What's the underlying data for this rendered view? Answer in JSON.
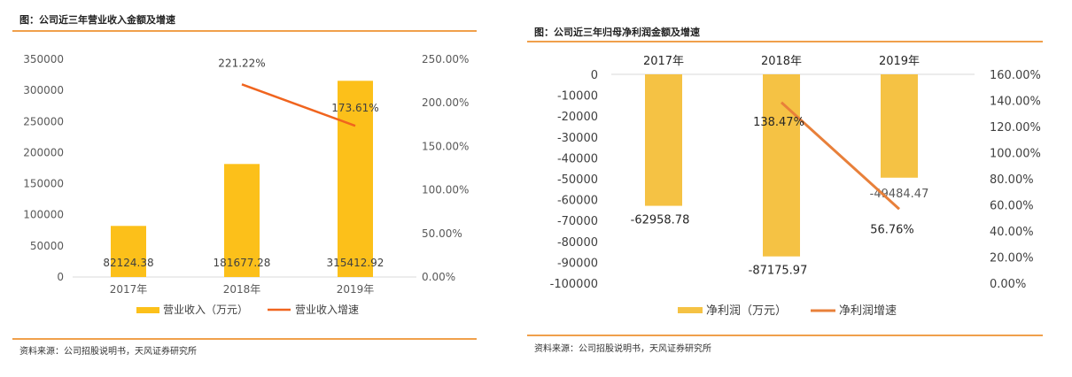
{
  "charts": [
    {
      "figure_title": "图：公司近三年营业收入金额及增速",
      "source_text": "资料来源：公司招股说明书，天风证券研究所",
      "chart_data": {
        "type": "bar",
        "categories": [
          "2017年",
          "2018年",
          "2019年"
        ],
        "series": [
          {
            "name": "营业收入（万元）",
            "type": "bar",
            "axis": "left",
            "color": "#fcc01a",
            "values": [
              82124.38,
              181677.28,
              315412.92
            ],
            "labels": [
              "82124.38",
              "181677.28",
              "315412.92"
            ]
          },
          {
            "name": "营业收入增速",
            "type": "line",
            "axis": "right",
            "color": "#f0641e",
            "values": [
              null,
              221.22,
              173.61
            ],
            "labels": [
              "",
              "221.22%",
              "173.61%"
            ]
          }
        ],
        "left_axis": {
          "min": 0,
          "max": 350000,
          "ticks": [
            "0",
            "50000",
            "100000",
            "150000",
            "200000",
            "250000",
            "300000",
            "350000"
          ]
        },
        "right_axis": {
          "min": 0,
          "max": 250,
          "ticks": [
            "0.00%",
            "50.00%",
            "100.00%",
            "150.00%",
            "200.00%",
            "250.00%"
          ]
        },
        "legend_position": "bottom",
        "grid": false
      }
    },
    {
      "figure_title": "图：公司近三年归母净利润金额及增速",
      "source_text": "资料来源：公司招股说明书，天风证券研究所",
      "chart_data": {
        "type": "bar",
        "categories": [
          "2017年",
          "2018年",
          "2019年"
        ],
        "category_axis_position": "top",
        "series": [
          {
            "name": "净利润（万元）",
            "type": "bar",
            "axis": "left",
            "color": "#f5c244",
            "values": [
              -62958.78,
              -87175.97,
              -49484.47
            ],
            "labels": [
              "-62958.78",
              "-87175.97",
              "-49484.47"
            ]
          },
          {
            "name": "净利润增速",
            "type": "line",
            "axis": "right",
            "color": "#e8803a",
            "values": [
              null,
              138.47,
              56.76
            ],
            "labels": [
              "",
              "138.47%",
              "56.76%"
            ]
          }
        ],
        "left_axis": {
          "min": -100000,
          "max": 0,
          "ticks": [
            "0",
            "-10000",
            "-20000",
            "-30000",
            "-40000",
            "-50000",
            "-60000",
            "-70000",
            "-80000",
            "-90000",
            "-100000"
          ]
        },
        "right_axis": {
          "min": 0,
          "max": 160,
          "ticks": [
            "0.00%",
            "20.00%",
            "40.00%",
            "60.00%",
            "80.00%",
            "100.00%",
            "120.00%",
            "140.00%",
            "160.00%"
          ]
        },
        "legend_position": "bottom",
        "grid": false
      }
    }
  ]
}
